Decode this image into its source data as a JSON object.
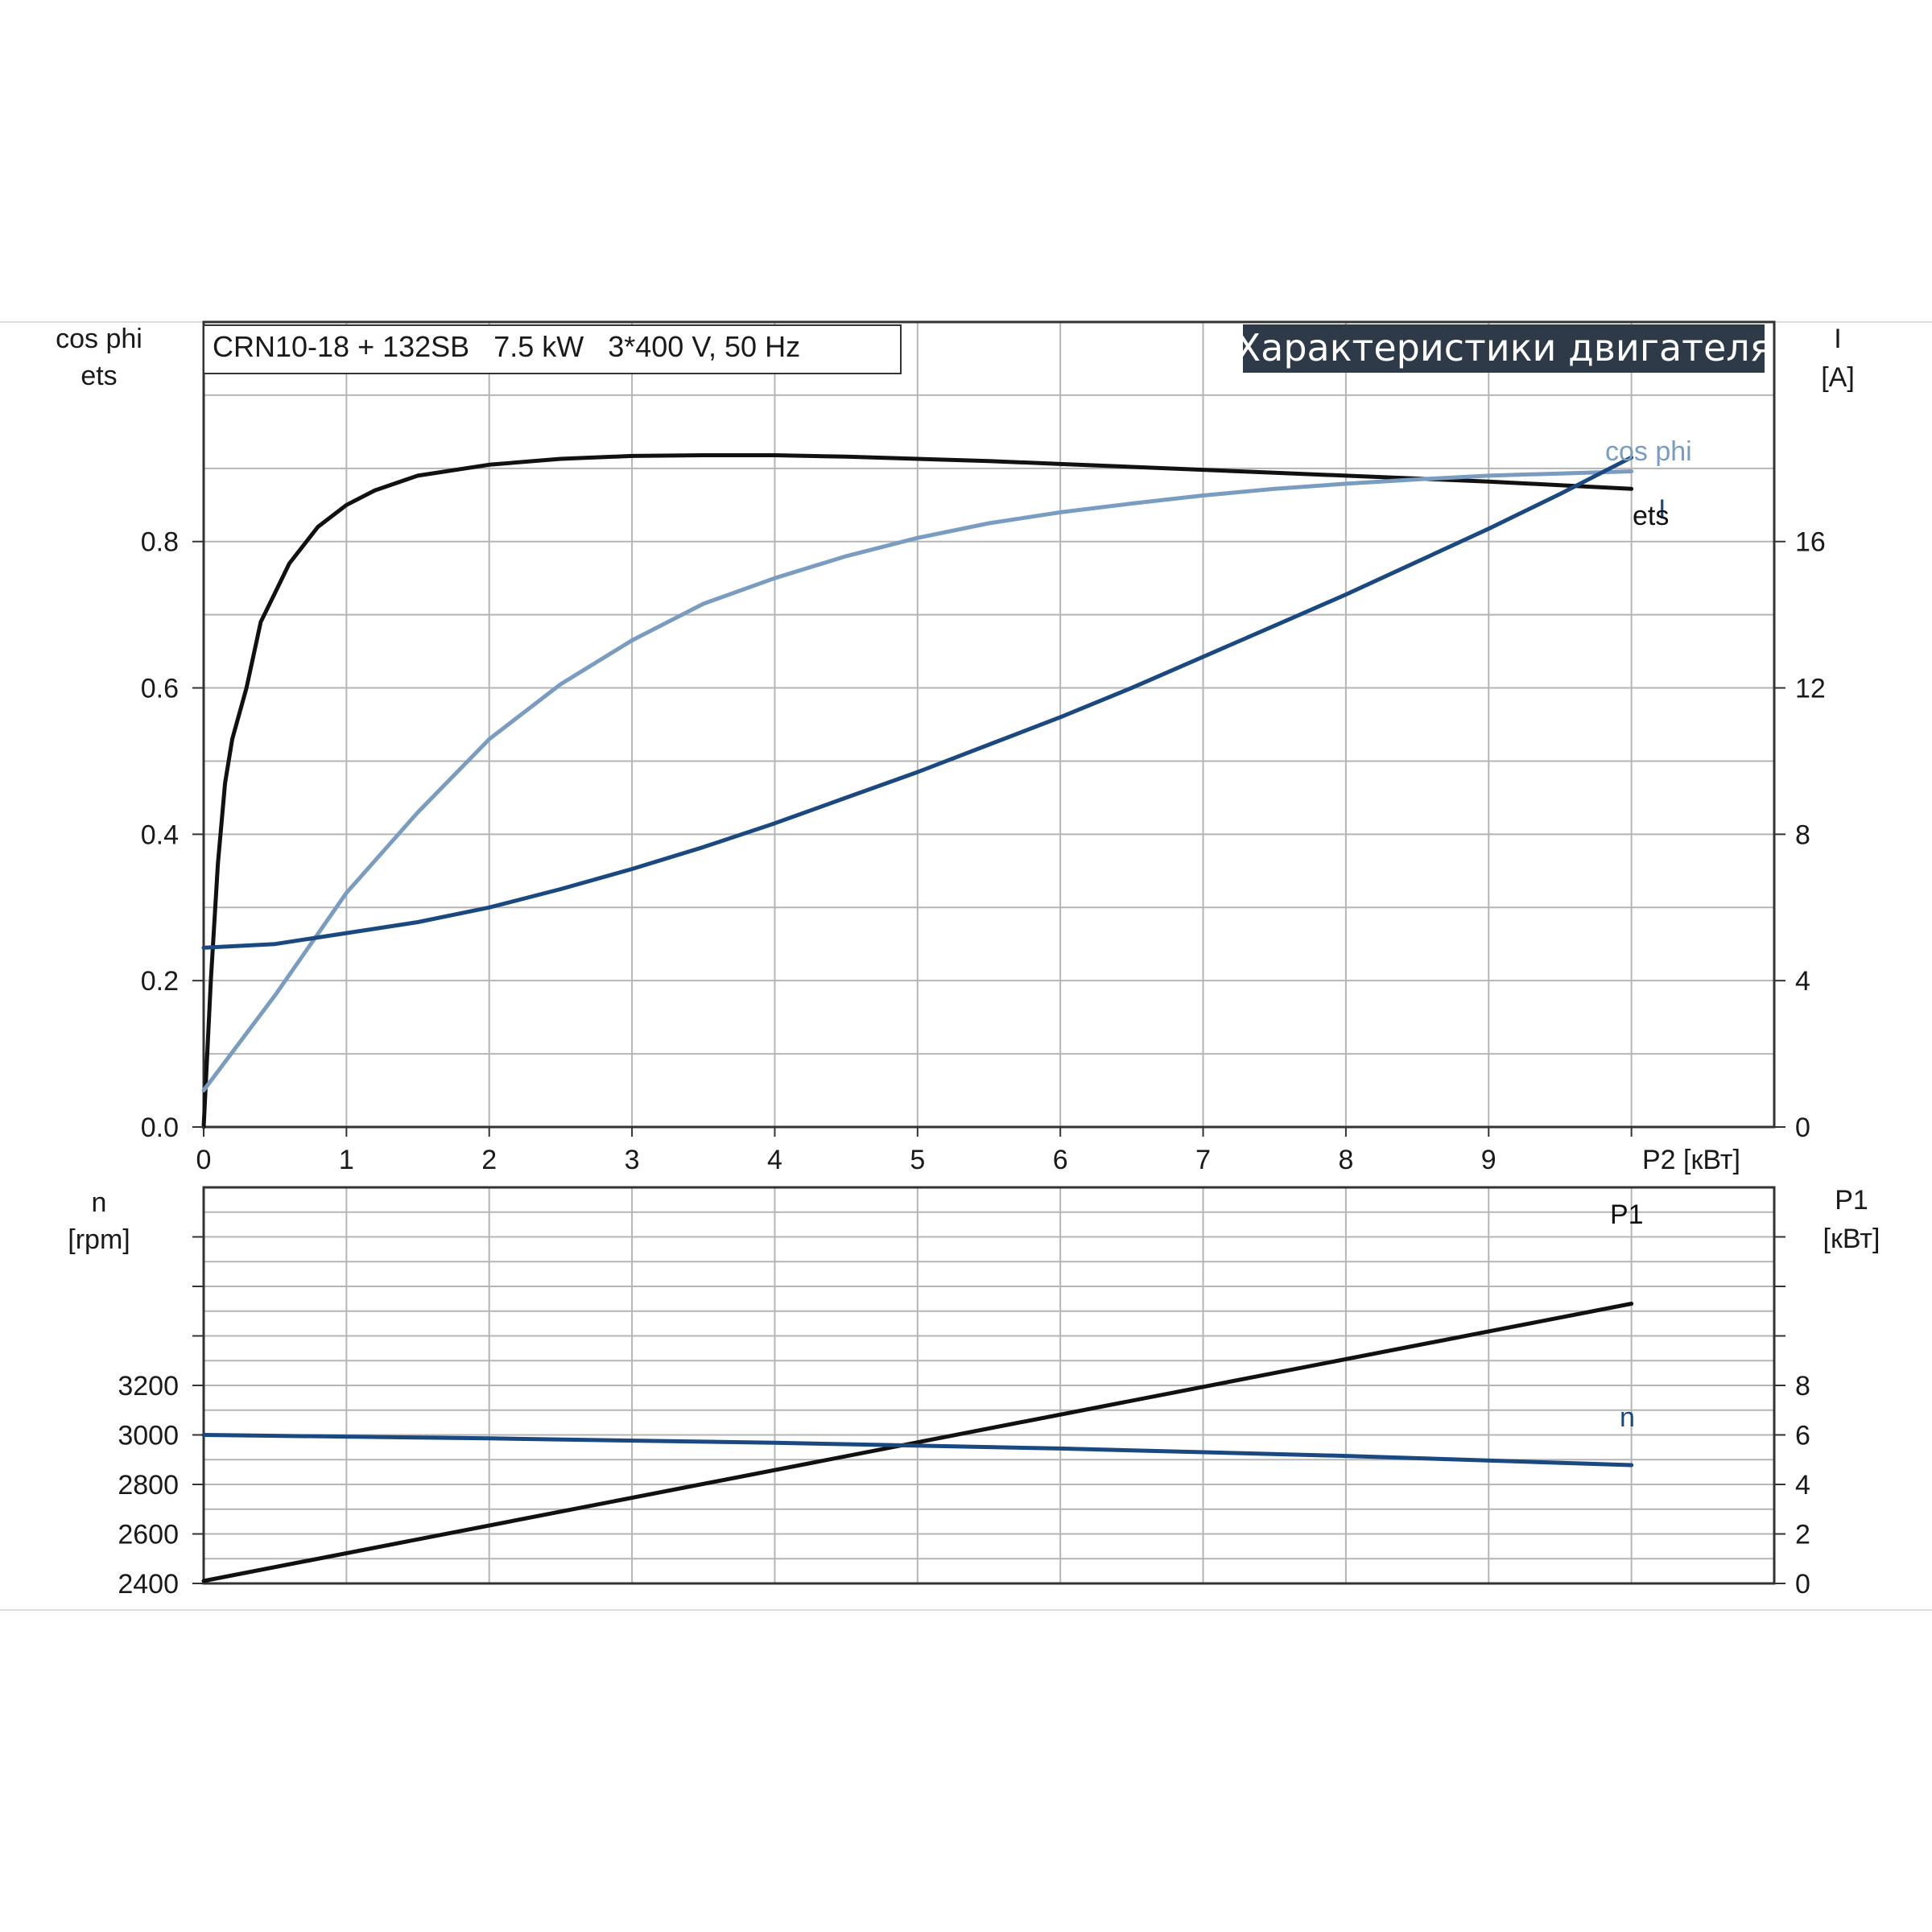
{
  "header": {
    "model": "CRN10-18 + 132SB   7.5 kW   3*400 V, 50 Hz",
    "title": "Характеристики двигателя"
  },
  "colors": {
    "eta": "#111111",
    "cosphi": "#7a9cc0",
    "current": "#1a4880",
    "p1": "#111111",
    "speed": "#1a4880",
    "title_bg": "#2e3a48",
    "grid": "#b5b5b5",
    "axis": "#333333"
  },
  "chart_data": [
    {
      "type": "line",
      "id": "upper",
      "xlabel": "P2 [кВт]",
      "ylabel_left": [
        "cos phi",
        "ets"
      ],
      "ylabel_right": [
        "I",
        "[A]"
      ],
      "xlim": [
        0,
        11
      ],
      "ylim_left": [
        0,
        1.1
      ],
      "ylim_right": [
        0,
        22
      ],
      "xticks": [
        0,
        1,
        2,
        3,
        4,
        5,
        6,
        7,
        8,
        9
      ],
      "yticks_left": [
        "0.0",
        "0.2",
        "0.4",
        "0.6",
        "0.8"
      ],
      "yticks_right": [
        "0",
        "4",
        "8",
        "12",
        "16"
      ],
      "grid": true,
      "series": [
        {
          "name": "ets",
          "axis": "left",
          "color": "#111111",
          "x": [
            0,
            0.05,
            0.1,
            0.15,
            0.2,
            0.3,
            0.4,
            0.5,
            0.6,
            0.8,
            1.0,
            1.2,
            1.5,
            2.0,
            2.5,
            3.0,
            3.5,
            4.0,
            4.5,
            5.0,
            5.5,
            6.0,
            6.5,
            7.0,
            7.5,
            8.0,
            8.5,
            9.0,
            9.5,
            10.0
          ],
          "y": [
            0.0,
            0.2,
            0.36,
            0.47,
            0.53,
            0.6,
            0.69,
            0.73,
            0.77,
            0.82,
            0.85,
            0.87,
            0.89,
            0.905,
            0.913,
            0.917,
            0.918,
            0.918,
            0.916,
            0.913,
            0.91,
            0.906,
            0.902,
            0.898,
            0.894,
            0.89,
            0.886,
            0.882,
            0.877,
            0.872
          ]
        },
        {
          "name": "cos phi",
          "axis": "left",
          "color": "#7a9cc0",
          "x": [
            0,
            0.5,
            1.0,
            1.5,
            2.0,
            2.5,
            3.0,
            3.5,
            4.0,
            4.5,
            5.0,
            5.5,
            6.0,
            6.5,
            7.0,
            7.5,
            8.0,
            8.5,
            9.0,
            9.5,
            10.0
          ],
          "y": [
            0.05,
            0.18,
            0.32,
            0.43,
            0.53,
            0.605,
            0.665,
            0.715,
            0.75,
            0.78,
            0.805,
            0.825,
            0.84,
            0.852,
            0.863,
            0.872,
            0.879,
            0.885,
            0.89,
            0.893,
            0.896
          ]
        },
        {
          "name": "I",
          "axis": "right",
          "color": "#1a4880",
          "x": [
            0,
            0.5,
            1.0,
            1.5,
            2.0,
            2.5,
            3.0,
            3.5,
            4.0,
            4.5,
            5.0,
            5.5,
            6.0,
            6.5,
            7.0,
            7.5,
            8.0,
            8.5,
            9.0,
            9.5,
            10.0
          ],
          "y": [
            4.9,
            5.0,
            5.3,
            5.6,
            6.0,
            6.5,
            7.05,
            7.65,
            8.3,
            9.0,
            9.7,
            10.45,
            11.2,
            12.0,
            12.85,
            13.7,
            14.55,
            15.45,
            16.35,
            17.3,
            18.3
          ]
        }
      ]
    },
    {
      "type": "line",
      "id": "lower",
      "ylabel_left": [
        "n",
        "[rpm]"
      ],
      "ylabel_right": [
        "P1",
        "[кВт]"
      ],
      "xlim": [
        0,
        11
      ],
      "ylim_left": [
        2400,
        4000
      ],
      "ylim_right": [
        0,
        16
      ],
      "yticks_left": [
        "2400",
        "2600",
        "2800",
        "3000",
        "3200"
      ],
      "yticks_right": [
        "0",
        "2",
        "4",
        "6",
        "8"
      ],
      "grid": true,
      "series": [
        {
          "name": "P1",
          "axis": "right",
          "color": "#111111",
          "x": [
            0,
            10
          ],
          "y": [
            0.1,
            11.3
          ]
        },
        {
          "name": "n",
          "axis": "left",
          "color": "#1a4880",
          "x": [
            0,
            2,
            4,
            6,
            8,
            10
          ],
          "y": [
            3000,
            2986,
            2968,
            2945,
            2915,
            2878
          ]
        }
      ]
    }
  ]
}
